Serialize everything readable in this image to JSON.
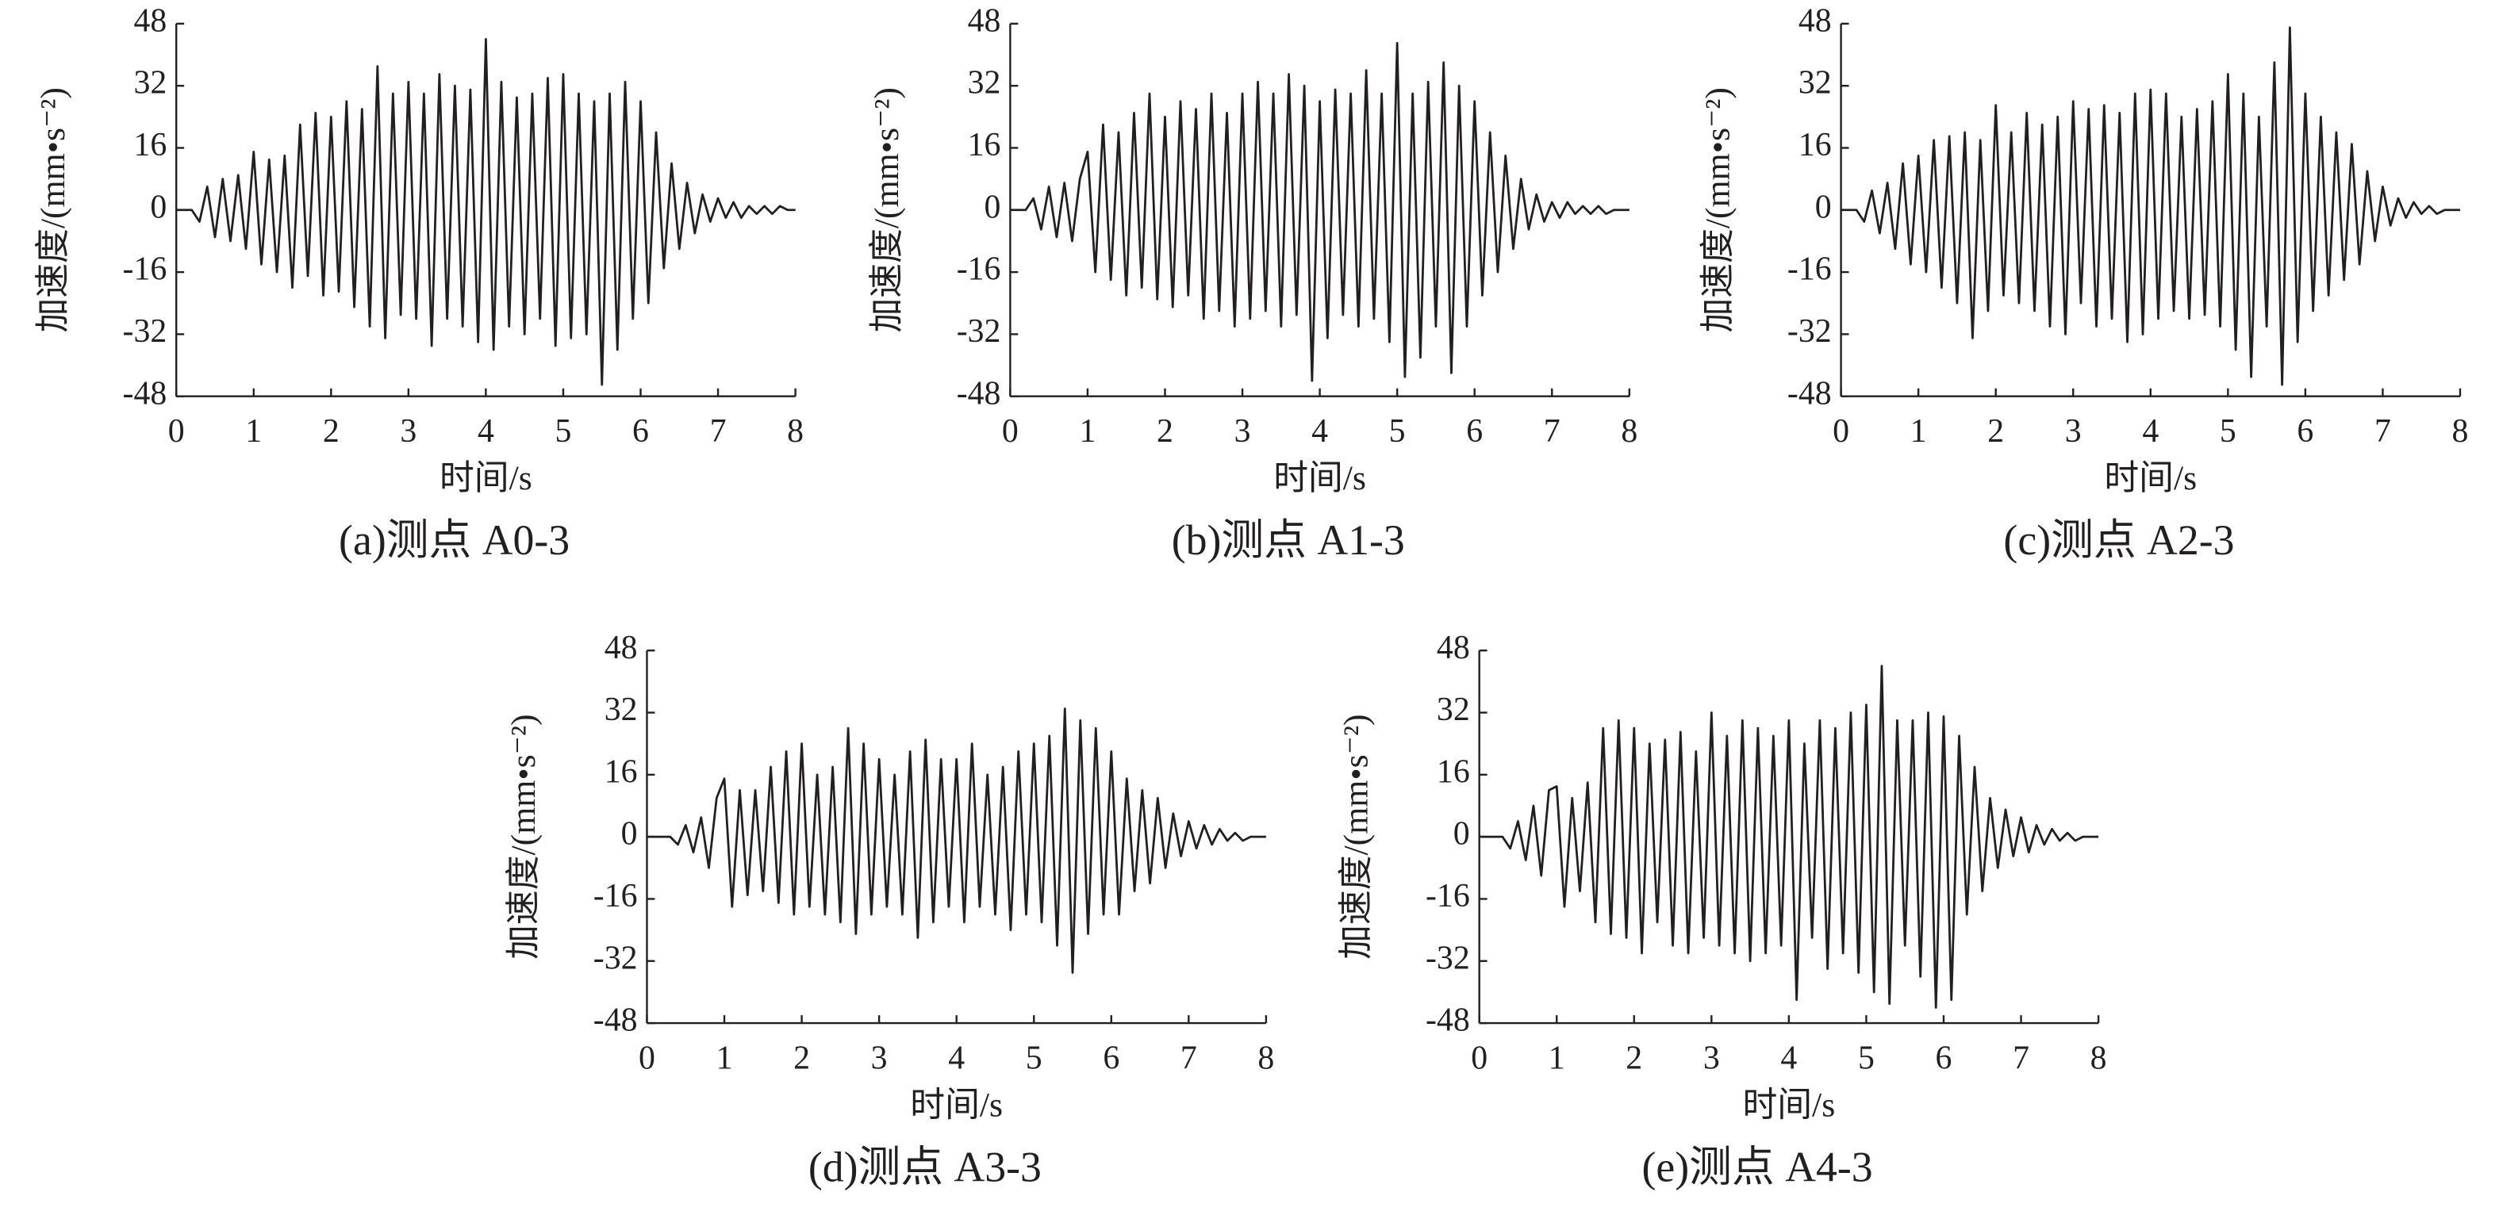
{
  "chart_data": [
    {
      "type": "line",
      "caption": "(a)测点 A0-3",
      "xlabel": "时间/s",
      "ylabel": "加速度/(mm•s⁻²)",
      "xlim": [
        0,
        8
      ],
      "xticks": [
        0,
        1,
        2,
        3,
        4,
        5,
        6,
        7,
        8
      ],
      "ylim": [
        -48,
        48
      ],
      "yticks": [
        -48,
        -32,
        -16,
        0,
        16,
        32,
        48
      ],
      "color": "#231f20",
      "x": [
        0,
        0.1,
        0.2,
        0.3,
        0.4,
        0.5,
        0.6,
        0.7,
        0.8,
        0.9,
        1,
        1.1,
        1.2,
        1.3,
        1.4,
        1.5,
        1.6,
        1.7,
        1.8,
        1.9,
        2,
        2.1,
        2.2,
        2.3,
        2.4,
        2.5,
        2.6,
        2.7,
        2.8,
        2.9,
        3,
        3.1,
        3.2,
        3.3,
        3.4,
        3.5,
        3.6,
        3.7,
        3.8,
        3.9,
        4,
        4.1,
        4.2,
        4.3,
        4.4,
        4.5,
        4.6,
        4.7,
        4.8,
        4.9,
        5,
        5.1,
        5.2,
        5.3,
        5.4,
        5.5,
        5.6,
        5.7,
        5.8,
        5.9,
        6,
        6.1,
        6.2,
        6.3,
        6.4,
        6.5,
        6.6,
        6.7,
        6.8,
        6.9,
        7,
        7.1,
        7.2,
        7.3,
        7.4,
        7.5,
        7.6,
        7.7,
        7.8,
        7.9,
        8
      ],
      "values": [
        0,
        0,
        0,
        -3,
        6,
        -7,
        8,
        -8,
        9,
        -10,
        15,
        -14,
        13,
        -16,
        14,
        -20,
        22,
        -17,
        25,
        -22,
        24,
        -21,
        28,
        -25,
        26,
        -30,
        37,
        -33,
        30,
        -27,
        33,
        -28,
        30,
        -35,
        35,
        -28,
        32,
        -30,
        31,
        -34,
        44,
        -36,
        33,
        -30,
        29,
        -32,
        30,
        -28,
        34,
        -35,
        35,
        -33,
        30,
        -32,
        28,
        -45,
        30,
        -36,
        33,
        -28,
        28,
        -24,
        20,
        -15,
        12,
        -10,
        7,
        -6,
        4,
        -3,
        3,
        -2,
        2,
        -2,
        1,
        -1,
        1,
        -1,
        1,
        0,
        0
      ]
    },
    {
      "type": "line",
      "caption": "(b)测点 A1-3",
      "xlabel": "时间/s",
      "ylabel": "加速度/(mm•s⁻²)",
      "xlim": [
        0,
        8
      ],
      "xticks": [
        0,
        1,
        2,
        3,
        4,
        5,
        6,
        7,
        8
      ],
      "ylim": [
        -48,
        48
      ],
      "yticks": [
        -48,
        -32,
        -16,
        0,
        16,
        32,
        48
      ],
      "color": "#231f20",
      "x": [
        0,
        0.1,
        0.2,
        0.3,
        0.4,
        0.5,
        0.6,
        0.7,
        0.8,
        0.9,
        1,
        1.1,
        1.2,
        1.3,
        1.4,
        1.5,
        1.6,
        1.7,
        1.8,
        1.9,
        2,
        2.1,
        2.2,
        2.3,
        2.4,
        2.5,
        2.6,
        2.7,
        2.8,
        2.9,
        3,
        3.1,
        3.2,
        3.3,
        3.4,
        3.5,
        3.6,
        3.7,
        3.8,
        3.9,
        4,
        4.1,
        4.2,
        4.3,
        4.4,
        4.5,
        4.6,
        4.7,
        4.8,
        4.9,
        5,
        5.1,
        5.2,
        5.3,
        5.4,
        5.5,
        5.6,
        5.7,
        5.8,
        5.9,
        6,
        6.1,
        6.2,
        6.3,
        6.4,
        6.5,
        6.6,
        6.7,
        6.8,
        6.9,
        7,
        7.1,
        7.2,
        7.3,
        7.4,
        7.5,
        7.6,
        7.7,
        7.8,
        7.9,
        8
      ],
      "values": [
        0,
        0,
        0,
        3,
        -5,
        6,
        -7,
        7,
        -8,
        8,
        15,
        -16,
        22,
        -18,
        20,
        -22,
        25,
        -20,
        30,
        -23,
        24,
        -25,
        28,
        -22,
        26,
        -28,
        30,
        -26,
        25,
        -30,
        30,
        -28,
        33,
        -26,
        30,
        -30,
        35,
        -27,
        32,
        -44,
        28,
        -33,
        31,
        -27,
        30,
        -30,
        36,
        -28,
        30,
        -34,
        43,
        -43,
        30,
        -38,
        33,
        -30,
        38,
        -42,
        32,
        -30,
        28,
        -22,
        20,
        -16,
        14,
        -10,
        8,
        -5,
        4,
        -3,
        2,
        -2,
        2,
        -1,
        1,
        -1,
        1,
        -1,
        0,
        0,
        0
      ]
    },
    {
      "type": "line",
      "caption": "(c)测点 A2-3",
      "xlabel": "时间/s",
      "ylabel": "加速度/(mm•s⁻²)",
      "xlim": [
        0,
        8
      ],
      "xticks": [
        0,
        1,
        2,
        3,
        4,
        5,
        6,
        7,
        8
      ],
      "ylim": [
        -48,
        48
      ],
      "yticks": [
        -48,
        -32,
        -16,
        0,
        16,
        32,
        48
      ],
      "color": "#231f20",
      "x": [
        0,
        0.1,
        0.2,
        0.3,
        0.4,
        0.5,
        0.6,
        0.7,
        0.8,
        0.9,
        1,
        1.1,
        1.2,
        1.3,
        1.4,
        1.5,
        1.6,
        1.7,
        1.8,
        1.9,
        2,
        2.1,
        2.2,
        2.3,
        2.4,
        2.5,
        2.6,
        2.7,
        2.8,
        2.9,
        3,
        3.1,
        3.2,
        3.3,
        3.4,
        3.5,
        3.6,
        3.7,
        3.8,
        3.9,
        4,
        4.1,
        4.2,
        4.3,
        4.4,
        4.5,
        4.6,
        4.7,
        4.8,
        4.9,
        5,
        5.1,
        5.2,
        5.3,
        5.4,
        5.5,
        5.6,
        5.7,
        5.8,
        5.9,
        6,
        6.1,
        6.2,
        6.3,
        6.4,
        6.5,
        6.6,
        6.7,
        6.8,
        6.9,
        7,
        7.1,
        7.2,
        7.3,
        7.4,
        7.5,
        7.6,
        7.7,
        7.8,
        7.9,
        8
      ],
      "values": [
        0,
        0,
        0,
        -3,
        5,
        -6,
        7,
        -10,
        12,
        -14,
        14,
        -16,
        18,
        -20,
        19,
        -24,
        20,
        -33,
        18,
        -26,
        27,
        -22,
        20,
        -24,
        25,
        -26,
        22,
        -30,
        24,
        -32,
        28,
        -24,
        26,
        -30,
        27,
        -28,
        25,
        -34,
        30,
        -32,
        31,
        -28,
        30,
        -26,
        24,
        -28,
        26,
        -27,
        28,
        -30,
        35,
        -36,
        30,
        -43,
        24,
        -30,
        38,
        -45,
        47,
        -34,
        30,
        -26,
        24,
        -22,
        20,
        -18,
        17,
        -14,
        10,
        -8,
        6,
        -4,
        3,
        -2,
        2,
        -1,
        1,
        -1,
        0,
        0,
        0
      ]
    },
    {
      "type": "line",
      "caption": "(d)测点 A3-3",
      "xlabel": "时间/s",
      "ylabel": "加速度/(mm•s⁻²)",
      "xlim": [
        0,
        8
      ],
      "xticks": [
        0,
        1,
        2,
        3,
        4,
        5,
        6,
        7,
        8
      ],
      "ylim": [
        -48,
        48
      ],
      "yticks": [
        -48,
        -32,
        -16,
        0,
        16,
        32,
        48
      ],
      "color": "#231f20",
      "x": [
        0,
        0.1,
        0.2,
        0.3,
        0.4,
        0.5,
        0.6,
        0.7,
        0.8,
        0.9,
        1,
        1.1,
        1.2,
        1.3,
        1.4,
        1.5,
        1.6,
        1.7,
        1.8,
        1.9,
        2,
        2.1,
        2.2,
        2.3,
        2.4,
        2.5,
        2.6,
        2.7,
        2.8,
        2.9,
        3,
        3.1,
        3.2,
        3.3,
        3.4,
        3.5,
        3.6,
        3.7,
        3.8,
        3.9,
        4,
        4.1,
        4.2,
        4.3,
        4.4,
        4.5,
        4.6,
        4.7,
        4.8,
        4.9,
        5,
        5.1,
        5.2,
        5.3,
        5.4,
        5.5,
        5.6,
        5.7,
        5.8,
        5.9,
        6,
        6.1,
        6.2,
        6.3,
        6.4,
        6.5,
        6.6,
        6.7,
        6.8,
        6.9,
        7,
        7.1,
        7.2,
        7.3,
        7.4,
        7.5,
        7.6,
        7.7,
        7.8,
        7.9,
        8
      ],
      "values": [
        0,
        0,
        0,
        0,
        -2,
        3,
        -4,
        5,
        -8,
        10,
        15,
        -18,
        12,
        -15,
        12,
        -14,
        18,
        -17,
        22,
        -20,
        24,
        -18,
        16,
        -20,
        18,
        -22,
        28,
        -25,
        24,
        -20,
        20,
        -18,
        16,
        -20,
        22,
        -26,
        25,
        -22,
        20,
        -18,
        20,
        -22,
        24,
        -18,
        16,
        -20,
        18,
        -24,
        22,
        -20,
        24,
        -22,
        26,
        -28,
        33,
        -35,
        30,
        -25,
        28,
        -20,
        22,
        -20,
        15,
        -14,
        12,
        -12,
        10,
        -8,
        6,
        -5,
        4,
        -3,
        3,
        -2,
        2,
        -1,
        1,
        -1,
        0,
        0,
        0
      ]
    },
    {
      "type": "line",
      "caption": "(e)测点 A4-3",
      "xlabel": "时间/s",
      "ylabel": "加速度/(mm•s⁻²)",
      "xlim": [
        0,
        8
      ],
      "xticks": [
        0,
        1,
        2,
        3,
        4,
        5,
        6,
        7,
        8
      ],
      "ylim": [
        -48,
        48
      ],
      "yticks": [
        -48,
        -32,
        -16,
        0,
        16,
        32,
        48
      ],
      "color": "#231f20",
      "x": [
        0,
        0.1,
        0.2,
        0.3,
        0.4,
        0.5,
        0.6,
        0.7,
        0.8,
        0.9,
        1,
        1.1,
        1.2,
        1.3,
        1.4,
        1.5,
        1.6,
        1.7,
        1.8,
        1.9,
        2,
        2.1,
        2.2,
        2.3,
        2.4,
        2.5,
        2.6,
        2.7,
        2.8,
        2.9,
        3,
        3.1,
        3.2,
        3.3,
        3.4,
        3.5,
        3.6,
        3.7,
        3.8,
        3.9,
        4,
        4.1,
        4.2,
        4.3,
        4.4,
        4.5,
        4.6,
        4.7,
        4.8,
        4.9,
        5,
        5.1,
        5.2,
        5.3,
        5.4,
        5.5,
        5.6,
        5.7,
        5.8,
        5.9,
        6,
        6.1,
        6.2,
        6.3,
        6.4,
        6.5,
        6.6,
        6.7,
        6.8,
        6.9,
        7,
        7.1,
        7.2,
        7.3,
        7.4,
        7.5,
        7.6,
        7.7,
        7.8,
        7.9,
        8
      ],
      "values": [
        0,
        0,
        0,
        0,
        -3,
        4,
        -6,
        8,
        -10,
        12,
        13,
        -18,
        10,
        -14,
        14,
        -22,
        28,
        -25,
        30,
        -26,
        28,
        -30,
        24,
        -22,
        25,
        -28,
        27,
        -30,
        22,
        -26,
        32,
        -28,
        26,
        -30,
        30,
        -32,
        28,
        -30,
        26,
        -28,
        30,
        -42,
        24,
        -26,
        30,
        -34,
        28,
        -30,
        32,
        -35,
        34,
        -40,
        44,
        -43,
        30,
        -28,
        30,
        -36,
        32,
        -44,
        31,
        -42,
        26,
        -20,
        18,
        -14,
        10,
        -8,
        7,
        -5,
        5,
        -4,
        3,
        -2,
        2,
        -1,
        1,
        -1,
        0,
        0,
        0
      ]
    }
  ]
}
